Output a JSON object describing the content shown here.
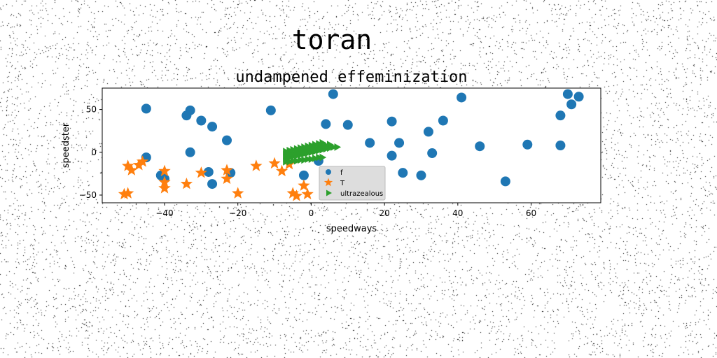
{
  "chart_data": {
    "type": "scatter",
    "suptitle": "toran",
    "title": "undampened effeminization",
    "xlabel": "speedways",
    "ylabel": "speedster",
    "xlim": [
      -57,
      79
    ],
    "ylim": [
      -59,
      75
    ],
    "xticks": [
      -40,
      -20,
      0,
      20,
      40,
      60
    ],
    "yticks": [
      -50,
      0,
      50
    ],
    "grid": false,
    "legend_position": "lower-center",
    "colors": {
      "f": "#1f77b4",
      "T": "#ff7f0e",
      "ultrazealous": "#2ca02c"
    },
    "series": [
      {
        "name": "f",
        "marker": "circle",
        "color": "#1f77b4",
        "points": [
          [
            -45,
            51
          ],
          [
            -33,
            49
          ],
          [
            -34,
            43
          ],
          [
            -30,
            37
          ],
          [
            -27,
            30
          ],
          [
            -23,
            14
          ],
          [
            -11,
            49
          ],
          [
            -33,
            0
          ],
          [
            -45,
            -6
          ],
          [
            -41,
            -27
          ],
          [
            -40,
            -31
          ],
          [
            -28,
            -23
          ],
          [
            -27,
            -37
          ],
          [
            -22,
            -24
          ],
          [
            -2,
            -27
          ],
          [
            2,
            -10
          ],
          [
            4,
            33
          ],
          [
            6,
            68
          ],
          [
            10,
            32
          ],
          [
            16,
            11
          ],
          [
            22,
            36
          ],
          [
            22,
            -4
          ],
          [
            24,
            11
          ],
          [
            25,
            -24
          ],
          [
            30,
            -27
          ],
          [
            32,
            24
          ],
          [
            33,
            -1
          ],
          [
            36,
            37
          ],
          [
            41,
            64
          ],
          [
            46,
            7
          ],
          [
            53,
            -34
          ],
          [
            59,
            9
          ],
          [
            68,
            43
          ],
          [
            68,
            8
          ],
          [
            70,
            68
          ],
          [
            71,
            56
          ],
          [
            73,
            65
          ]
        ]
      },
      {
        "name": "T",
        "marker": "star",
        "color": "#ff7f0e",
        "points": [
          [
            -51,
            -49
          ],
          [
            -50,
            -48
          ],
          [
            -50,
            -16
          ],
          [
            -49,
            -21
          ],
          [
            -47,
            -15
          ],
          [
            -46,
            -11
          ],
          [
            -40,
            -22
          ],
          [
            -40,
            -35
          ],
          [
            -40,
            -42
          ],
          [
            -34,
            -37
          ],
          [
            -30,
            -24
          ],
          [
            -23,
            -21
          ],
          [
            -23,
            -31
          ],
          [
            -20,
            -48
          ],
          [
            -15,
            -16
          ],
          [
            -10,
            -13
          ],
          [
            -8,
            -22
          ],
          [
            -6,
            -14
          ],
          [
            -5,
            -48
          ],
          [
            -4,
            -51
          ],
          [
            -2,
            -39
          ],
          [
            -1,
            -49
          ]
        ]
      },
      {
        "name": "ultrazealous",
        "marker": "triangle-right",
        "color": "#2ca02c",
        "points": [
          [
            -7,
            -11
          ],
          [
            -6,
            -11
          ],
          [
            -5,
            -10
          ],
          [
            -4,
            -10
          ],
          [
            -3,
            -9
          ],
          [
            -2,
            -9
          ],
          [
            -1,
            -8
          ],
          [
            0,
            -8
          ],
          [
            1,
            -7
          ],
          [
            2,
            -6
          ],
          [
            3,
            -6
          ],
          [
            -7,
            -7
          ],
          [
            -6,
            -6
          ],
          [
            -5,
            -5
          ],
          [
            -4,
            -4
          ],
          [
            -3,
            -3
          ],
          [
            -2,
            -2
          ],
          [
            -1,
            -1
          ],
          [
            0,
            0
          ],
          [
            1,
            1
          ],
          [
            2,
            2
          ],
          [
            3,
            3
          ],
          [
            4,
            4
          ],
          [
            5,
            5
          ],
          [
            6,
            6
          ],
          [
            7,
            6
          ],
          [
            -7,
            -3
          ],
          [
            -6,
            -2
          ],
          [
            -5,
            -1
          ],
          [
            -4,
            0
          ],
          [
            -3,
            1
          ],
          [
            -2,
            2
          ],
          [
            -1,
            3
          ],
          [
            0,
            4
          ],
          [
            1,
            5
          ],
          [
            2,
            6
          ],
          [
            3,
            7
          ],
          [
            4,
            8
          ],
          [
            5,
            9
          ],
          [
            -7,
            1
          ],
          [
            -6,
            2
          ],
          [
            -5,
            3
          ],
          [
            -4,
            4
          ],
          [
            -3,
            5
          ],
          [
            -2,
            6
          ],
          [
            -1,
            7
          ],
          [
            0,
            8
          ],
          [
            1,
            9
          ],
          [
            2,
            10
          ],
          [
            3,
            11
          ]
        ]
      }
    ]
  }
}
